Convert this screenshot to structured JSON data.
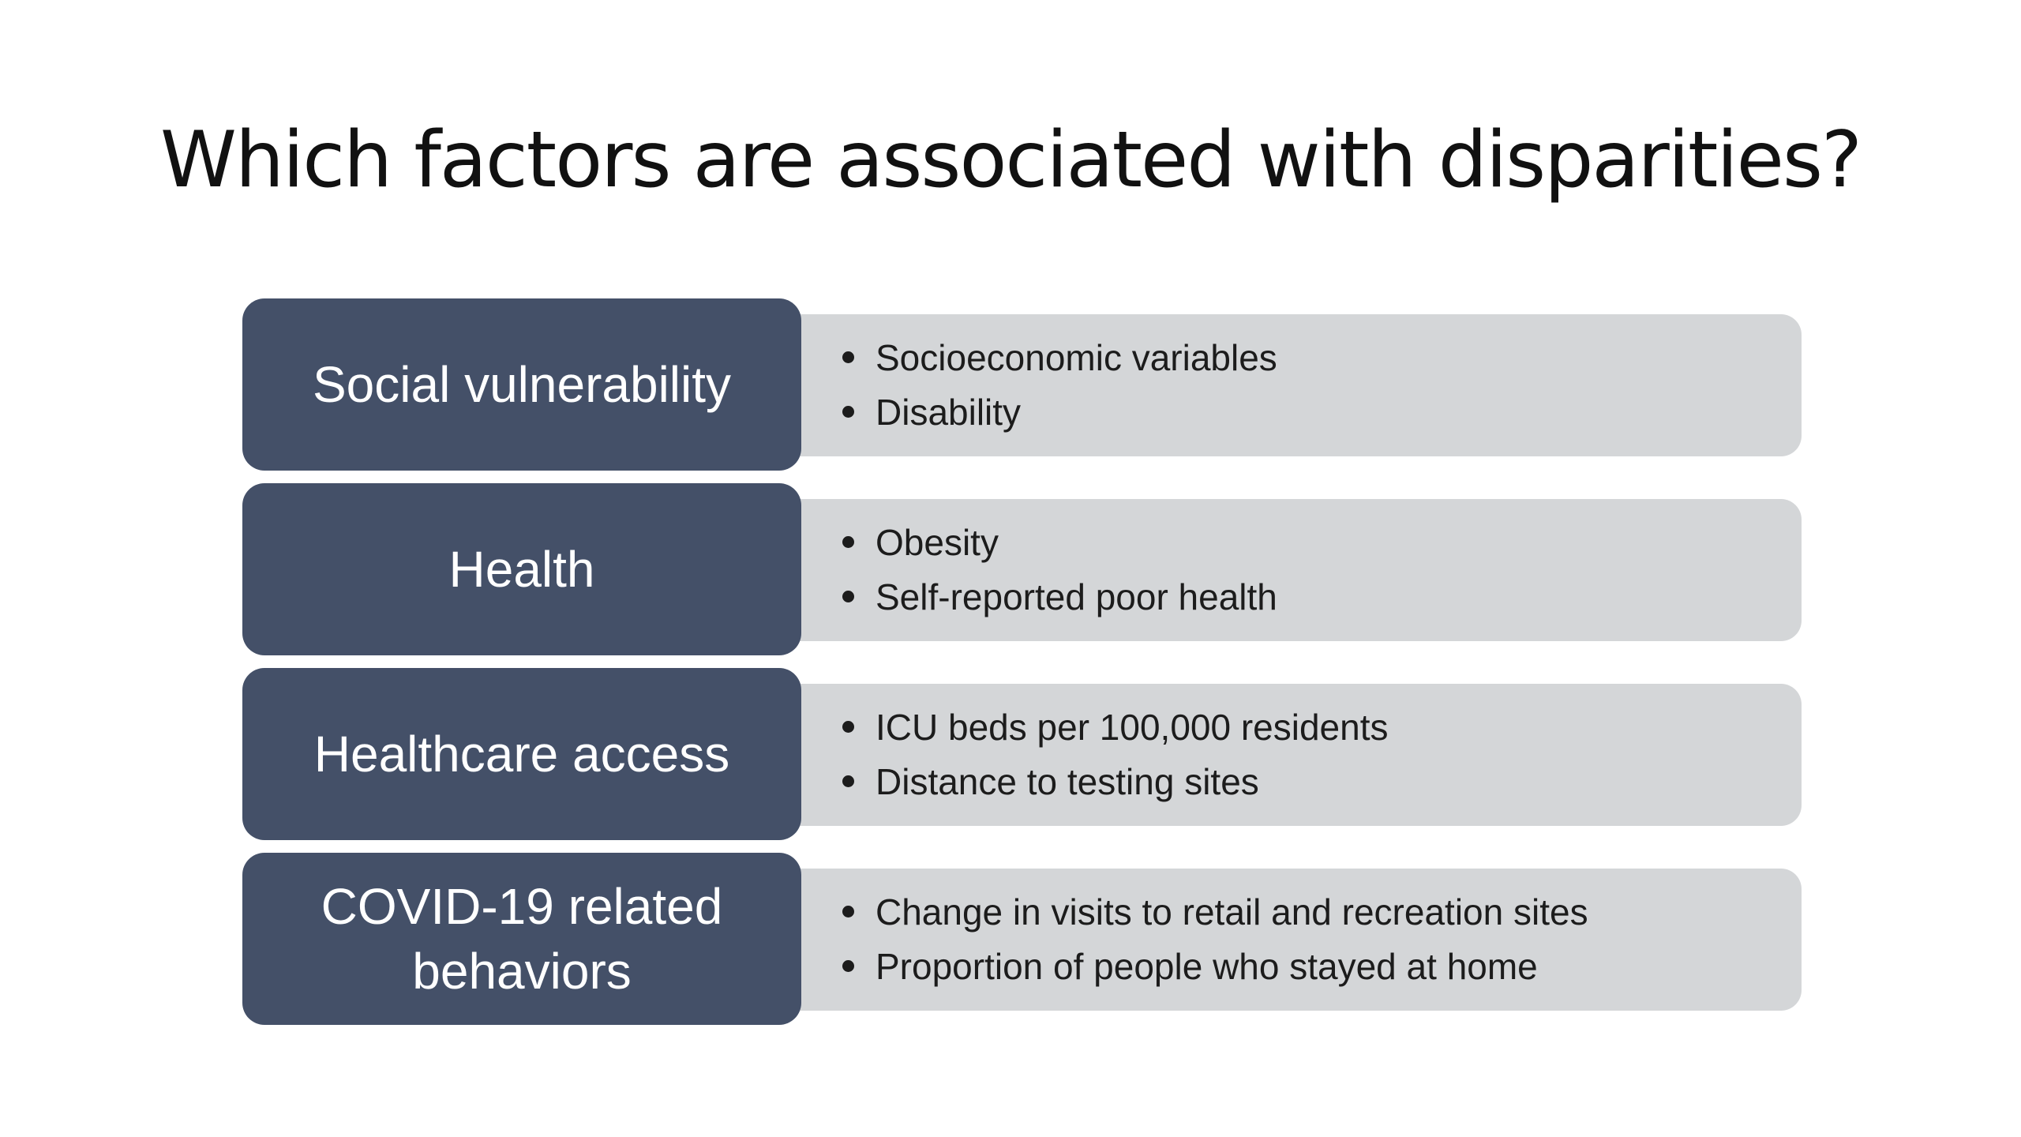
{
  "title": "Which factors are associated with disparities?",
  "colors": {
    "category_bg": "#445068",
    "description_bg": "#d4d6d8",
    "title_text": "#111111"
  },
  "rows": [
    {
      "category": "Social vulnerability",
      "items": [
        "Socioeconomic variables",
        "Disability"
      ]
    },
    {
      "category": "Health",
      "items": [
        "Obesity",
        "Self-reported poor health"
      ]
    },
    {
      "category": "Healthcare access",
      "items": [
        "ICU beds per 100,000 residents",
        "Distance to testing sites"
      ]
    },
    {
      "category": "COVID-19 related behaviors",
      "items": [
        "Change in visits to retail and recreation sites",
        "Proportion of people who stayed at home"
      ]
    }
  ]
}
